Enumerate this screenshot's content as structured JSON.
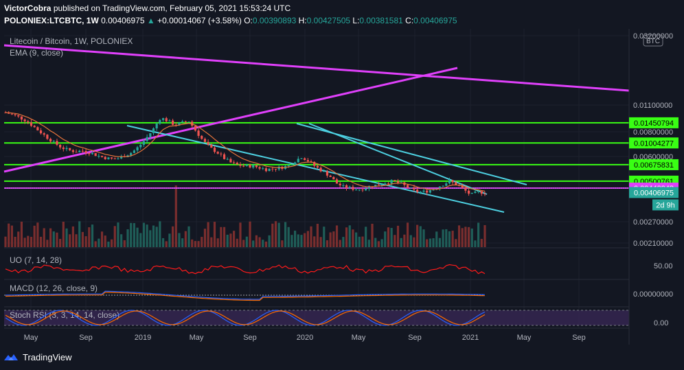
{
  "header": {
    "publisher": "VictorCobra",
    "published_text": "published on TradingView.com, February 05, 2021 15:53:24 UTC",
    "symbol": "POLONIEX:LTCBTC, 1W",
    "last": "0.00406975",
    "change_arrow": "▲",
    "change": "+0.00014067 (+3.58%)",
    "o_label": "O:",
    "o": "0.00390893",
    "h_label": "H:",
    "h": "0.00427505",
    "l_label": "L:",
    "l": "0.00381581",
    "c_label": "C:",
    "c": "0.00406975"
  },
  "legend": {
    "title": "Litecoin / Bitcoin, 1W, POLONIEX",
    "ema": "EMA (9, close)",
    "uo": "UO (7, 14, 28)",
    "macd": "MACD (12, 26, close, 9)",
    "stoch": "Stoch RSI (3, 3, 14, 14, close)"
  },
  "currency_badge": "BTC",
  "footer": {
    "brand": "TradingView"
  },
  "colors": {
    "background": "#131722",
    "up": "#26a69a",
    "down": "#ef5350",
    "ema": "#e8743b",
    "green_lines": "#39ff14",
    "magenta": "#e040fb",
    "cyan": "#4dd0e1",
    "uo": "#ff1a1a",
    "stoch_band": "#3c2a5a"
  },
  "chart_data": {
    "type": "candlestick",
    "symbol": "LTCBTC",
    "timeframe": "1W",
    "scale": "log",
    "x_ticks": [
      "May",
      "Sep",
      "2019",
      "May",
      "Sep",
      "2020",
      "May",
      "Sep",
      "2021",
      "May",
      "Sep"
    ],
    "y_ticks": [
      "0.03200000",
      "0.01100000",
      "0.00800000",
      "0.00600000",
      "0.00270000",
      "0.00210000"
    ],
    "horizontal_levels": [
      {
        "value": 0.01450794,
        "label": "0.01450794",
        "color": "#39ff14"
      },
      {
        "value": 0.01004277,
        "label": "0.01004277",
        "color": "#39ff14"
      },
      {
        "value": 0.00675831,
        "label": "0.00675831",
        "color": "#39ff14"
      },
      {
        "value": 0.00500761,
        "label": "0.00500761",
        "color": "#39ff14"
      },
      {
        "value": 0.00440948,
        "label": "0.00440948",
        "color": "#e040fb"
      }
    ],
    "current_price": {
      "value": 0.00406975,
      "label": "0.00406975",
      "countdown": "2d 9h"
    },
    "price_path": [
      0.0175,
      0.0168,
      0.016,
      0.015,
      0.0135,
      0.0122,
      0.011,
      0.01,
      0.0092,
      0.0088,
      0.0086,
      0.0087,
      0.0084,
      0.008,
      0.0077,
      0.0075,
      0.0076,
      0.008,
      0.0085,
      0.0095,
      0.011,
      0.013,
      0.016,
      0.015,
      0.014,
      0.0145,
      0.015,
      0.0125,
      0.0105,
      0.0092,
      0.0085,
      0.0076,
      0.007,
      0.0067,
      0.0066,
      0.0066,
      0.0064,
      0.0062,
      0.0063,
      0.0064,
      0.0066,
      0.0072,
      0.0078,
      0.0072,
      0.0065,
      0.006,
      0.0055,
      0.0048,
      0.0045,
      0.0044,
      0.0043,
      0.0044,
      0.0046,
      0.0047,
      0.0049,
      0.005,
      0.0048,
      0.0045,
      0.0042,
      0.0041,
      0.0042,
      0.0044,
      0.0047,
      0.005,
      0.0047,
      0.0043,
      0.0039,
      0.0041,
      0.00407
    ],
    "uo_level_label": "50.00",
    "macd_level_label": "0.00000000",
    "stoch_level_label": "0.00"
  }
}
